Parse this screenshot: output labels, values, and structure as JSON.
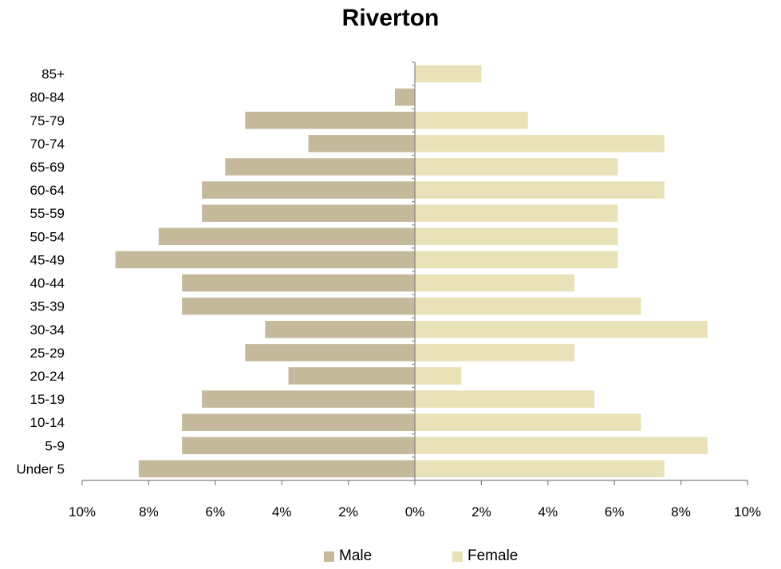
{
  "chart_data": {
    "type": "bar",
    "orientation": "horizontal",
    "title": "Riverton",
    "categories": [
      "Under 5",
      "5-9",
      "10-14",
      "15-19",
      "20-24",
      "25-29",
      "30-34",
      "35-39",
      "40-44",
      "45-49",
      "50-54",
      "55-59",
      "60-64",
      "65-69",
      "70-74",
      "75-79",
      "80-84",
      "85+"
    ],
    "series": [
      {
        "name": "Male",
        "color": "#c4b99a",
        "values": [
          8.3,
          7.0,
          7.0,
          6.4,
          3.8,
          5.1,
          4.5,
          7.0,
          7.0,
          9.0,
          7.7,
          6.4,
          6.4,
          5.7,
          3.2,
          5.1,
          0.6,
          0.0
        ]
      },
      {
        "name": "Female",
        "color": "#e9e2b8",
        "values": [
          7.5,
          8.8,
          6.8,
          5.4,
          1.4,
          4.8,
          8.8,
          6.8,
          4.8,
          6.1,
          6.1,
          6.1,
          7.5,
          6.1,
          7.5,
          3.4,
          0.0,
          2.0
        ]
      }
    ],
    "xlim": [
      -10,
      10
    ],
    "xticks": [
      "10%",
      "8%",
      "6%",
      "4%",
      "2%",
      "0%",
      "2%",
      "4%",
      "6%",
      "8%",
      "10%"
    ],
    "xlabel": "",
    "ylabel": "",
    "grid": false,
    "legend_position": "bottom"
  }
}
